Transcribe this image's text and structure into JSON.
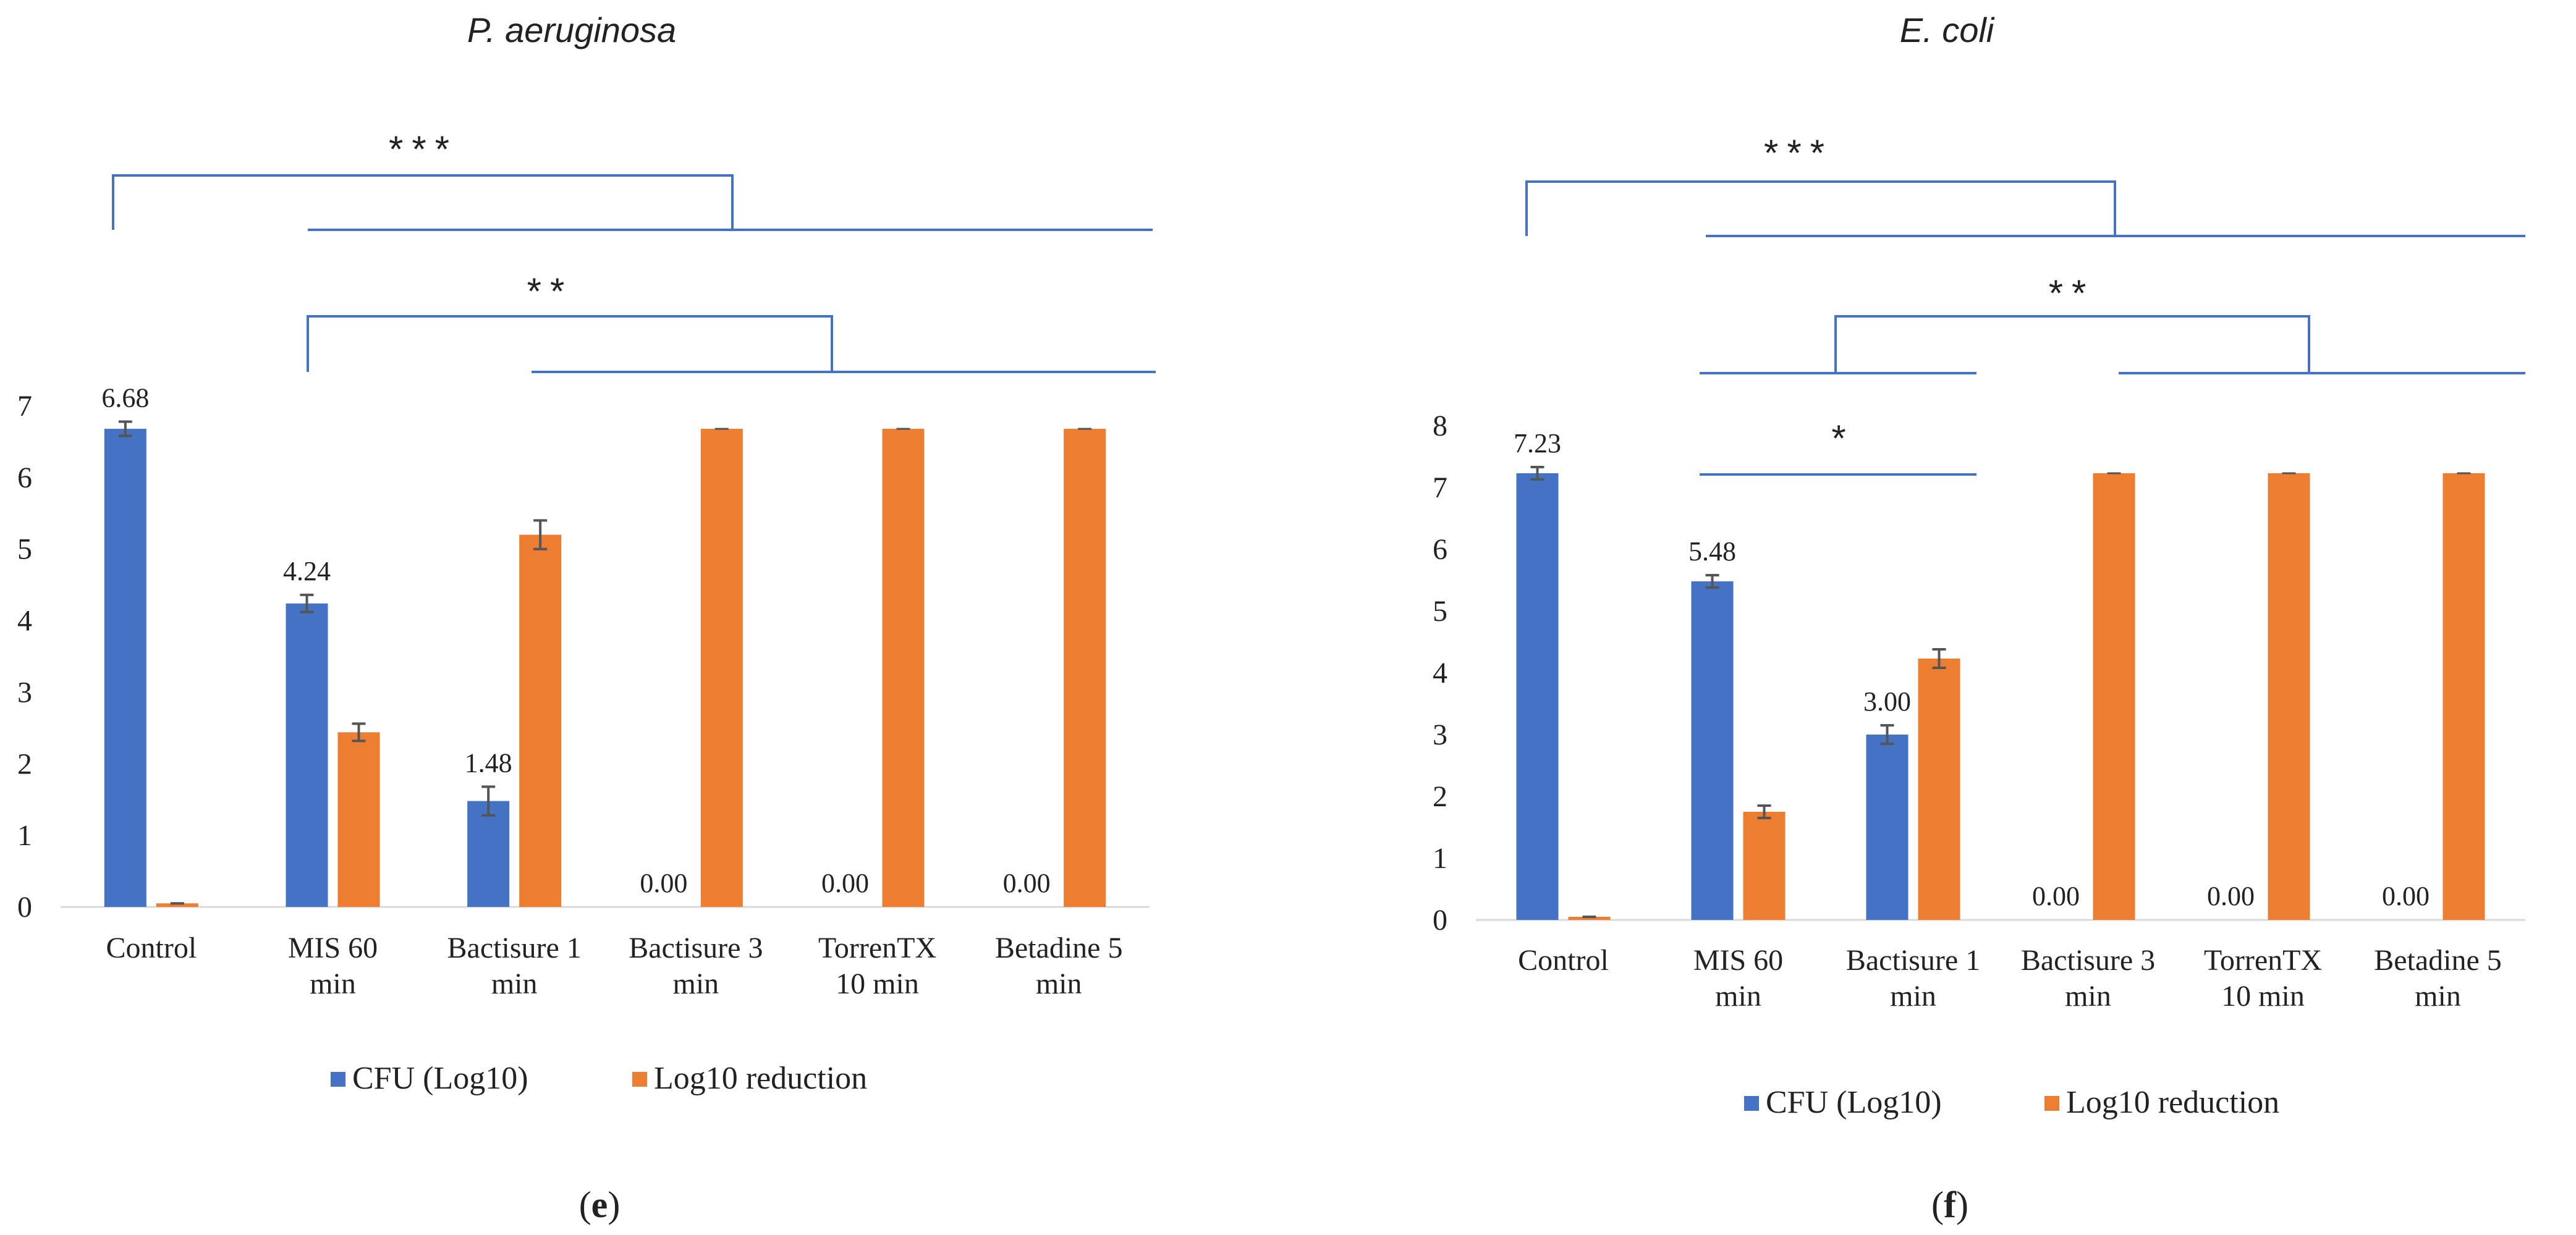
{
  "colors": {
    "cfu": "#4472C4",
    "log_reduction": "#ED7D31",
    "bracket": "#4472C4",
    "axis": "#D9D9D9",
    "error_bar": "#555555"
  },
  "chart_data": [
    {
      "type": "bar",
      "panel_label": "e",
      "title": "P. aeruginosa",
      "categories": [
        [
          "Control"
        ],
        [
          "MIS 60",
          "min"
        ],
        [
          "Bactisure 1",
          "min"
        ],
        [
          "Bactisure 3",
          "min"
        ],
        [
          "TorrenTX",
          "10 min"
        ],
        [
          "Betadine 5",
          "min"
        ]
      ],
      "series": [
        {
          "name": "CFU (Log10)",
          "color_key": "cfu",
          "values": [
            6.68,
            4.24,
            1.48,
            0,
            0,
            0
          ],
          "errors": [
            0.1,
            0.12,
            0.2,
            0,
            0,
            0
          ]
        },
        {
          "name": "Log10 reduction",
          "color_key": "log_reduction",
          "values": [
            0.05,
            2.44,
            5.2,
            6.68,
            6.68,
            6.68
          ],
          "errors": [
            0,
            0.12,
            0.2,
            0,
            0,
            0
          ]
        }
      ],
      "data_labels": [
        "6.68",
        "4.24",
        "1.48",
        "0.00",
        "0.00",
        "0.00"
      ],
      "yticks": [
        "0",
        "1",
        "2",
        "3",
        "4",
        "5",
        "6",
        "7"
      ],
      "ylim": [
        0,
        7
      ],
      "legend_position": "bottom",
      "significance": [
        {
          "label": "***",
          "left_group": [
            0
          ],
          "right_group": [
            1,
            2,
            3,
            4,
            5
          ]
        },
        {
          "label": "**",
          "left_group": [
            1
          ],
          "right_group": [
            2,
            3,
            4,
            5
          ]
        }
      ]
    },
    {
      "type": "bar",
      "panel_label": "f",
      "title": "E. coli",
      "categories": [
        [
          "Control"
        ],
        [
          "MIS 60",
          "min"
        ],
        [
          "Bactisure 1",
          "min"
        ],
        [
          "Bactisure 3",
          "min"
        ],
        [
          "TorrenTX",
          "10 min"
        ],
        [
          "Betadine 5",
          "min"
        ]
      ],
      "series": [
        {
          "name": "CFU (Log10)",
          "color_key": "cfu",
          "values": [
            7.23,
            5.48,
            3.0,
            0,
            0,
            0
          ],
          "errors": [
            0.1,
            0.1,
            0.15,
            0,
            0,
            0
          ]
        },
        {
          "name": "Log10 reduction",
          "color_key": "log_reduction",
          "values": [
            0.05,
            1.75,
            4.23,
            7.23,
            7.23,
            7.23
          ],
          "errors": [
            0,
            0.1,
            0.15,
            0,
            0,
            0
          ]
        }
      ],
      "data_labels": [
        "7.23",
        "5.48",
        "3.00",
        "0.00",
        "0.00",
        "0.00"
      ],
      "yticks": [
        "0",
        "1",
        "2",
        "3",
        "4",
        "5",
        "6",
        "7",
        "8"
      ],
      "ylim": [
        0,
        8
      ],
      "legend_position": "bottom",
      "significance": [
        {
          "label": "***",
          "left_group": [
            0
          ],
          "right_group": [
            1,
            2,
            3,
            4,
            5
          ]
        },
        {
          "label": "**",
          "left_group": [
            1,
            2
          ],
          "right_group": [
            3,
            4,
            5
          ]
        },
        {
          "label": "*",
          "line_group": [
            1,
            2
          ]
        }
      ]
    }
  ]
}
